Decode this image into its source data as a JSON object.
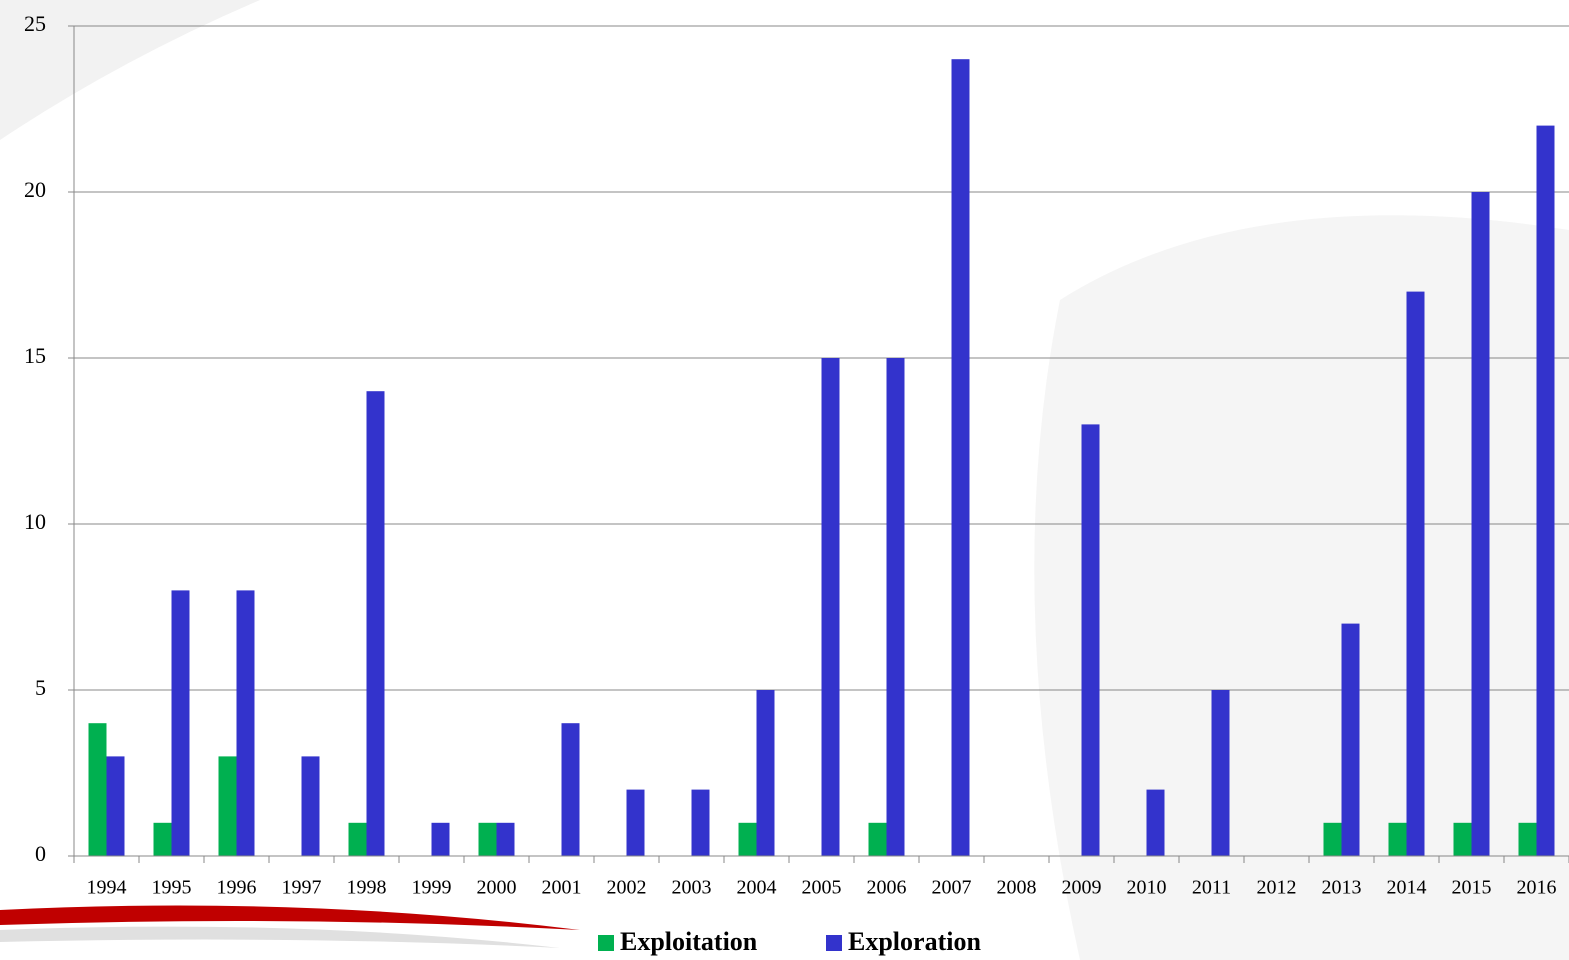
{
  "chart_data": {
    "type": "bar",
    "categories": [
      "1994",
      "1995",
      "1996",
      "1997",
      "1998",
      "1999",
      "2000",
      "2001",
      "2002",
      "2003",
      "2004",
      "2005",
      "2006",
      "2007",
      "2008",
      "2009",
      "2010",
      "2011",
      "2012",
      "2013",
      "2014",
      "2015",
      "2016"
    ],
    "series": [
      {
        "name": "Exploitation",
        "color": "#00b050",
        "values": [
          4,
          1,
          3,
          0,
          1,
          0,
          1,
          0,
          0,
          0,
          1,
          0,
          1,
          0,
          0,
          0,
          0,
          0,
          0,
          1,
          1,
          1,
          1
        ]
      },
      {
        "name": "Exploration",
        "color": "#3333cc",
        "values": [
          3,
          8,
          8,
          3,
          14,
          1,
          1,
          4,
          2,
          2,
          5,
          15,
          15,
          24,
          0,
          13,
          2,
          5,
          0,
          7,
          17,
          20,
          22
        ]
      }
    ],
    "ylim": [
      0,
      25
    ],
    "yticks": [
      0,
      5,
      10,
      15,
      20,
      25
    ],
    "grid": true,
    "legend": "bottom"
  }
}
